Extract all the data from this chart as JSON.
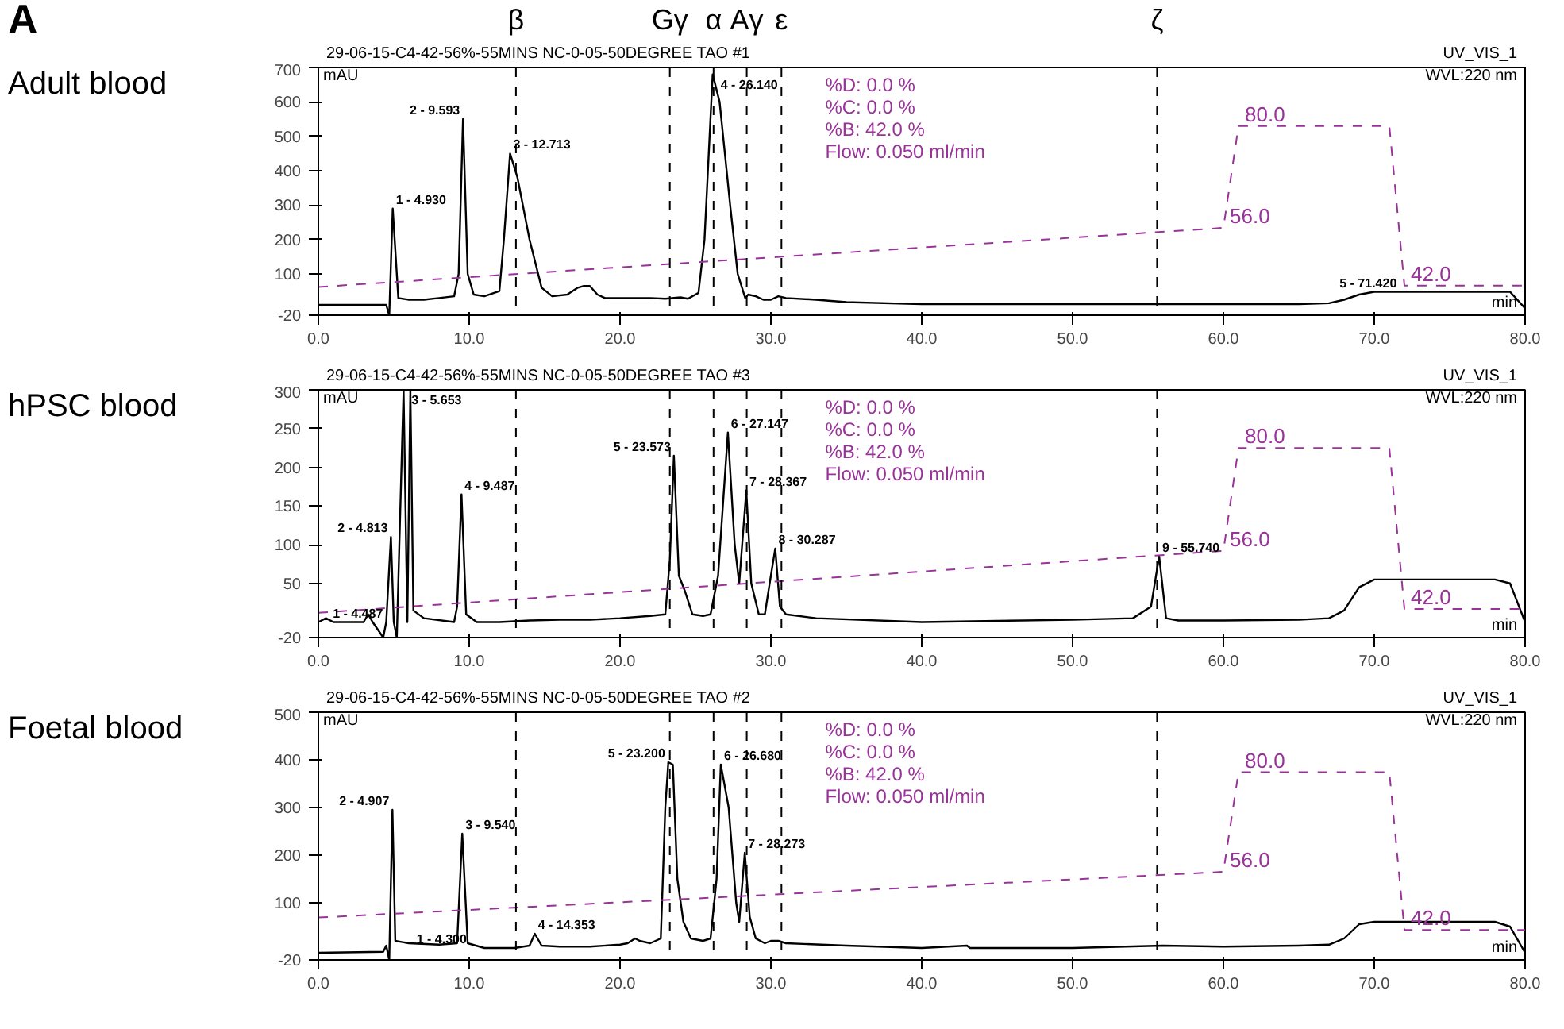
{
  "chart_data": [
    {
      "type": "line",
      "title": "Adult blood",
      "xlim": [
        0,
        80
      ],
      "ylim": [
        -20,
        700
      ],
      "xticks": [
        {
          "value": 0,
          "label": "0.0"
        },
        {
          "value": 10,
          "label": "10.0"
        },
        {
          "value": 20,
          "label": "20.0"
        },
        {
          "value": 30,
          "label": "30.0"
        },
        {
          "value": 40,
          "label": "40.0"
        },
        {
          "value": 50,
          "label": "50.0"
        },
        {
          "value": 60,
          "label": "60.0"
        },
        {
          "value": 70,
          "label": "70.0"
        },
        {
          "value": 80,
          "label": "80.0"
        }
      ],
      "yticks": [
        -20,
        100,
        200,
        300,
        400,
        500,
        600,
        700
      ],
      "series": [
        {
          "color": "#000000",
          "line_style": "solid",
          "x": [
            0,
            4.5,
            4.7,
            4.93,
            5.3,
            6,
            7,
            8,
            9,
            9.3,
            9.59,
            9.9,
            10.3,
            11,
            12,
            12.3,
            12.71,
            13.2,
            14,
            14.8,
            15.5,
            16.5,
            17.2,
            17.6,
            18,
            18.5,
            19,
            20,
            22,
            23,
            24,
            24.5,
            25.2,
            25.6,
            26.14,
            26.6,
            27.3,
            27.8,
            28.3,
            28.5,
            29,
            29.5,
            30,
            30.5,
            31,
            33,
            35,
            40,
            50,
            60,
            65,
            67,
            68,
            69,
            70,
            75,
            79,
            80
          ],
          "values": [
            10,
            10,
            -20,
            290,
            30,
            25,
            25,
            30,
            35,
            100,
            550,
            100,
            40,
            35,
            50,
            200,
            450,
            380,
            200,
            60,
            35,
            40,
            60,
            65,
            65,
            40,
            30,
            30,
            30,
            28,
            32,
            28,
            45,
            200,
            680,
            600,
            300,
            100,
            30,
            40,
            35,
            25,
            25,
            35,
            30,
            25,
            18,
            12,
            12,
            12,
            12,
            15,
            25,
            40,
            48,
            48,
            48,
            0
          ]
        },
        {
          "color": "#993399",
          "line_style": "dashed",
          "x": [
            0,
            60,
            61,
            71,
            72,
            80
          ],
          "values": [
            62,
            234,
            530,
            530,
            66,
            66
          ]
        }
      ],
      "ref_lines": [
        {
          "axis": "x",
          "value": 13.1,
          "label": "β"
        },
        {
          "axis": "x",
          "value": 23.3,
          "label": "Gγ"
        },
        {
          "axis": "x",
          "value": 26.2,
          "label": "α"
        },
        {
          "axis": "x",
          "value": 28.4,
          "label": "Aγ"
        },
        {
          "axis": "x",
          "value": 30.7,
          "label": "ε"
        },
        {
          "axis": "x",
          "value": 55.6,
          "label": "ζ"
        }
      ],
      "annotations": [
        "29-06-15-C4-42-56%-55MINS NC-0-05-50DEGREE TAO #1",
        "UV_VIS_1",
        "WVL:220 nm",
        "mAU",
        "min",
        "%D: 0.0 %",
        "%C: 0.0 %",
        "%B: 42.0 %",
        "Flow: 0.050 ml/min",
        "A",
        {
          "text": "1 - 4.930",
          "x": 4.93,
          "y": 290
        },
        {
          "text": "2 - 9.593",
          "x": 9.59,
          "y": 550
        },
        {
          "text": "3 - 12.713",
          "x": 12.71,
          "y": 450
        },
        {
          "text": "4 - 26.140",
          "x": 26.14,
          "y": 680
        },
        {
          "text": "5 - 71.420",
          "x": 71.7,
          "y": 48
        },
        {
          "text": "56.0",
          "x": 60,
          "y": 234
        },
        {
          "text": "80.0",
          "x": 61,
          "y": 530
        },
        {
          "text": "42.0",
          "x": 72,
          "y": 66
        }
      ]
    },
    {
      "type": "line",
      "title": "hPSC blood",
      "xlim": [
        0,
        80
      ],
      "ylim": [
        -20,
        300
      ],
      "xticks": [
        {
          "value": 0,
          "label": "0.0"
        },
        {
          "value": 10,
          "label": "10.0"
        },
        {
          "value": 20,
          "label": "20.0"
        },
        {
          "value": 30,
          "label": "30.0"
        },
        {
          "value": 40,
          "label": "40.0"
        },
        {
          "value": 50,
          "label": "50.0"
        },
        {
          "value": 60,
          "label": "60.0"
        },
        {
          "value": 70,
          "label": "70.0"
        },
        {
          "value": 80,
          "label": "80.0"
        }
      ],
      "yticks": [
        -20,
        50,
        100,
        150,
        200,
        250,
        300
      ],
      "series": [
        {
          "color": "#000000",
          "line_style": "solid",
          "x": [
            0,
            0.5,
            1,
            3,
            3.3,
            3.6,
            4.3,
            4.5,
            4.81,
            5.0,
            5.2,
            5.65,
            5.9,
            6.1,
            6.3,
            7,
            9,
            9.2,
            9.49,
            9.8,
            10.5,
            12,
            14,
            16,
            18,
            20,
            22,
            23,
            23.3,
            23.57,
            23.9,
            24.3,
            24.8,
            25.5,
            26,
            26.5,
            27.15,
            27.6,
            27.9,
            28.37,
            28.7,
            29.2,
            29.6,
            30,
            30.29,
            30.6,
            31,
            33,
            40,
            50,
            54,
            55.2,
            55.74,
            56.2,
            57,
            60,
            65,
            67,
            68,
            69,
            70,
            78,
            79,
            80
          ],
          "values": [
            0,
            5,
            0,
            0,
            10,
            0,
            -20,
            0,
            110,
            0,
            -20,
            300,
            0,
            300,
            15,
            5,
            0,
            20,
            165,
            10,
            0,
            0,
            2,
            3,
            3,
            5,
            8,
            10,
            80,
            215,
            60,
            40,
            10,
            8,
            10,
            60,
            245,
            100,
            50,
            170,
            50,
            10,
            10,
            60,
            95,
            20,
            10,
            5,
            0,
            3,
            5,
            20,
            85,
            5,
            2,
            2,
            3,
            5,
            15,
            45,
            55,
            55,
            50,
            0
          ]
        },
        {
          "color": "#993399",
          "line_style": "dashed",
          "x": [
            0,
            60,
            61,
            71,
            72,
            80
          ],
          "values": [
            12,
            92,
            225,
            225,
            17,
            17
          ]
        }
      ],
      "ref_lines": [
        {
          "axis": "x",
          "value": 13.1
        },
        {
          "axis": "x",
          "value": 23.3
        },
        {
          "axis": "x",
          "value": 26.2
        },
        {
          "axis": "x",
          "value": 28.4
        },
        {
          "axis": "x",
          "value": 30.7
        },
        {
          "axis": "x",
          "value": 55.6
        }
      ],
      "annotations": [
        "29-06-15-C4-42-56%-55MINS NC-0-05-50DEGREE TAO #3",
        "UV_VIS_1",
        "WVL:220 nm",
        "mAU",
        "min",
        "%D: 0.0 %",
        "%C: 0.0 %",
        "%B: 42.0 %",
        "Flow: 0.050 ml/min",
        {
          "text": "1 - 4.487",
          "x": 4.49,
          "y": 0
        },
        {
          "text": "2 - 4.813",
          "x": 4.81,
          "y": 110
        },
        {
          "text": "3 - 5.653",
          "x": 5.65,
          "y": 300
        },
        {
          "text": "4 - 9.487",
          "x": 9.49,
          "y": 165
        },
        {
          "text": "5 - 23.573",
          "x": 23.57,
          "y": 215
        },
        {
          "text": "6 - 27.147",
          "x": 27.15,
          "y": 245
        },
        {
          "text": "7 - 28.367",
          "x": 28.37,
          "y": 170
        },
        {
          "text": "8 - 30.287",
          "x": 30.29,
          "y": 95
        },
        {
          "text": "9 - 55.740",
          "x": 55.74,
          "y": 85
        },
        {
          "text": "56.0",
          "x": 60,
          "y": 92
        },
        {
          "text": "80.0",
          "x": 61,
          "y": 225
        },
        {
          "text": "42.0",
          "x": 72,
          "y": 17
        }
      ]
    },
    {
      "type": "line",
      "title": "Foetal blood",
      "xlim": [
        0,
        80
      ],
      "ylim": [
        -20,
        500
      ],
      "xticks": [
        {
          "value": 0,
          "label": "0.0"
        },
        {
          "value": 10,
          "label": "10.0"
        },
        {
          "value": 20,
          "label": "20.0"
        },
        {
          "value": 30,
          "label": "30.0"
        },
        {
          "value": 40,
          "label": "40.0"
        },
        {
          "value": 50,
          "label": "50.0"
        },
        {
          "value": 60,
          "label": "60.0"
        },
        {
          "value": 70,
          "label": "70.0"
        },
        {
          "value": 80,
          "label": "80.0"
        }
      ],
      "yticks": [
        -20,
        100,
        200,
        300,
        400,
        500
      ],
      "series": [
        {
          "color": "#000000",
          "line_style": "solid",
          "x": [
            0,
            4.3,
            4.5,
            4.7,
            4.91,
            5.1,
            6,
            8,
            9.2,
            9.54,
            9.9,
            11,
            13,
            14,
            14.35,
            14.8,
            16,
            18,
            20,
            20.5,
            21,
            21.3,
            22,
            22.7,
            23,
            23.2,
            23.5,
            23.8,
            24.2,
            24.7,
            25.5,
            26,
            26.4,
            26.68,
            27.2,
            27.7,
            27.9,
            28.27,
            28.6,
            29,
            29.6,
            30,
            30.5,
            31,
            35,
            40,
            43,
            43.2,
            50,
            56,
            60,
            65,
            67,
            68,
            69,
            70,
            78,
            79,
            80
          ],
          "values": [
            -5,
            -3,
            10,
            -20,
            295,
            20,
            15,
            12,
            15,
            245,
            15,
            5,
            5,
            10,
            35,
            10,
            8,
            8,
            12,
            15,
            25,
            20,
            15,
            25,
            300,
            395,
            390,
            150,
            60,
            25,
            20,
            25,
            150,
            390,
            300,
            100,
            60,
            205,
            70,
            25,
            15,
            20,
            20,
            15,
            10,
            5,
            10,
            5,
            5,
            10,
            8,
            10,
            12,
            25,
            55,
            60,
            60,
            50,
            -5
          ]
        },
        {
          "color": "#993399",
          "line_style": "dashed",
          "x": [
            0,
            60,
            61,
            71,
            72,
            80
          ],
          "values": [
            69,
            165,
            374,
            374,
            43,
            43
          ]
        }
      ],
      "ref_lines": [
        {
          "axis": "x",
          "value": 13.1
        },
        {
          "axis": "x",
          "value": 23.3
        },
        {
          "axis": "x",
          "value": 26.2
        },
        {
          "axis": "x",
          "value": 28.4
        },
        {
          "axis": "x",
          "value": 30.7
        },
        {
          "axis": "x",
          "value": 55.6
        }
      ],
      "annotations": [
        "29-06-15-C4-42-56%-55MINS NC-0-05-50DEGREE TAO #2",
        "UV_VIS_1",
        "WVL:220 nm",
        "mAU",
        "min",
        "%D: 0.0 %",
        "%C: 0.0 %",
        "%B: 42.0 %",
        "Flow: 0.050 ml/min",
        {
          "text": "1 - 4.300",
          "x": 6.3,
          "y": 5
        },
        {
          "text": "2 - 4.907",
          "x": 4.91,
          "y": 295
        },
        {
          "text": "3 - 9.540",
          "x": 9.54,
          "y": 245
        },
        {
          "text": "4 - 14.353",
          "x": 14.35,
          "y": 35
        },
        {
          "text": "5 - 23.200",
          "x": 23.2,
          "y": 395
        },
        {
          "text": "6 - 26.680",
          "x": 26.68,
          "y": 390
        },
        {
          "text": "7 - 28.273",
          "x": 28.27,
          "y": 205
        },
        {
          "text": "56.0",
          "x": 60,
          "y": 165
        },
        {
          "text": "80.0",
          "x": 61,
          "y": 374
        },
        {
          "text": "42.0",
          "x": 72,
          "y": 43
        }
      ]
    }
  ]
}
